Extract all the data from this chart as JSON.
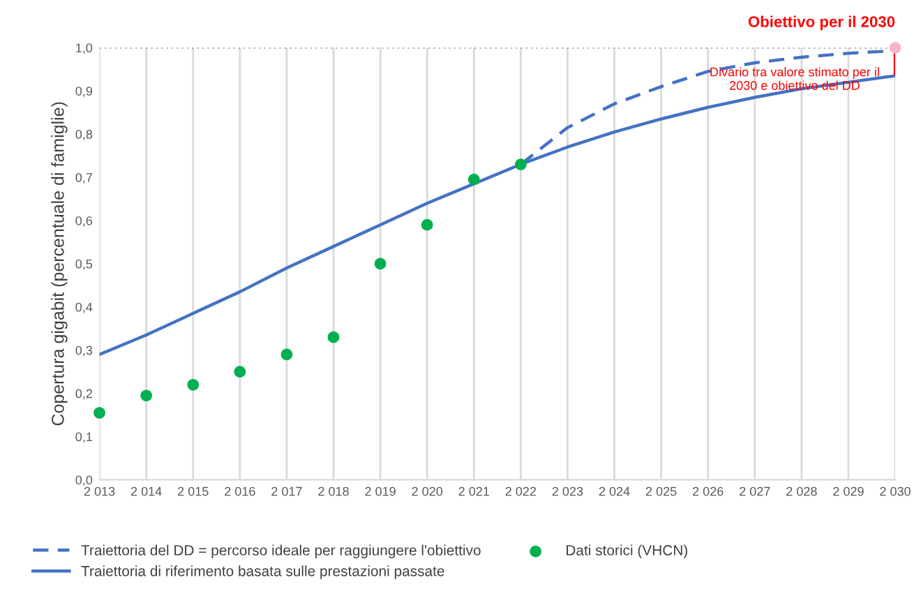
{
  "chart_data": {
    "type": "line",
    "ylabel": "Copertura gigabit (percentuale di famiglie)",
    "xlim": [
      2013,
      2030
    ],
    "ylim": [
      0,
      1.0
    ],
    "xticks": [
      {
        "value": 2013,
        "label": "2 013"
      },
      {
        "value": 2014,
        "label": "2 014"
      },
      {
        "value": 2015,
        "label": "2 015"
      },
      {
        "value": 2016,
        "label": "2 016"
      },
      {
        "value": 2017,
        "label": "2 017"
      },
      {
        "value": 2018,
        "label": "2 018"
      },
      {
        "value": 2019,
        "label": "2 019"
      },
      {
        "value": 2020,
        "label": "2 020"
      },
      {
        "value": 2021,
        "label": "2 021"
      },
      {
        "value": 2022,
        "label": "2 022"
      },
      {
        "value": 2023,
        "label": "2 023"
      },
      {
        "value": 2024,
        "label": "2 024"
      },
      {
        "value": 2025,
        "label": "2 025"
      },
      {
        "value": 2026,
        "label": "2 026"
      },
      {
        "value": 2027,
        "label": "2 027"
      },
      {
        "value": 2028,
        "label": "2 028"
      },
      {
        "value": 2029,
        "label": "2 029"
      },
      {
        "value": 2030,
        "label": "2 030"
      }
    ],
    "yticks": [
      {
        "value": 0,
        "label": "0,0"
      },
      {
        "value": 0.1,
        "label": "0,1"
      },
      {
        "value": 0.2,
        "label": "0,2"
      },
      {
        "value": 0.3,
        "label": "0,3"
      },
      {
        "value": 0.4,
        "label": "0,4"
      },
      {
        "value": 0.5,
        "label": "0,5"
      },
      {
        "value": 0.6,
        "label": "0,6"
      },
      {
        "value": 0.7,
        "label": "0,7"
      },
      {
        "value": 0.8,
        "label": "0,8"
      },
      {
        "value": 0.9,
        "label": "0,9"
      },
      {
        "value": 1.0,
        "label": "1,0"
      }
    ],
    "grid": "x",
    "legend": "bottom",
    "series": [
      {
        "name": "Traiettoria del DD = percorso ideale per raggiungere l'obiettivo",
        "line_style": "dashed",
        "color": "#4472c4",
        "x": [
          2022,
          2023,
          2024,
          2025,
          2026,
          2027,
          2028,
          2029,
          2030
        ],
        "values": [
          0.73,
          0.815,
          0.87,
          0.91,
          0.945,
          0.965,
          0.978,
          0.987,
          0.993
        ]
      },
      {
        "name": "Traiettoria di riferimento basata sulle prestazioni passate",
        "line_style": "solid",
        "color": "#4472c4",
        "x": [
          2013,
          2014,
          2015,
          2016,
          2017,
          2018,
          2019,
          2020,
          2021,
          2022,
          2023,
          2024,
          2025,
          2026,
          2027,
          2028,
          2029,
          2030
        ],
        "values": [
          0.29,
          0.335,
          0.385,
          0.435,
          0.49,
          0.54,
          0.59,
          0.64,
          0.685,
          0.73,
          0.77,
          0.805,
          0.835,
          0.862,
          0.885,
          0.905,
          0.92,
          0.935
        ]
      },
      {
        "name": "Dati storici (VHCN)",
        "type": "scatter",
        "marker": "circle",
        "color": "#00b050",
        "x": [
          2013,
          2014,
          2015,
          2016,
          2017,
          2018,
          2019,
          2020,
          2021,
          2022
        ],
        "values": [
          0.155,
          0.195,
          0.22,
          0.25,
          0.29,
          0.33,
          0.5,
          0.59,
          0.695,
          0.73
        ]
      },
      {
        "type": "scatter",
        "marker": "circle",
        "color": "#f4b6c8",
        "x": [
          2030
        ],
        "values": [
          1.0
        ]
      },
      {
        "line_style": "solid",
        "color": "#ff0000",
        "x": [
          2030,
          2030
        ],
        "values": [
          0.99,
          0.94
        ]
      }
    ],
    "ref_lines": [
      {
        "axis": "y",
        "value": 1.0,
        "color": "#a6a6a6",
        "line_style": "dotted"
      }
    ],
    "annotations": [
      {
        "text": "Obiettivo per il 2030",
        "x": 2030,
        "y": 1.0
      },
      {
        "text": "Divario tra valore stimato per il\n2030 e obiettivo del DD",
        "x": 2030,
        "y": 0.955
      }
    ]
  }
}
